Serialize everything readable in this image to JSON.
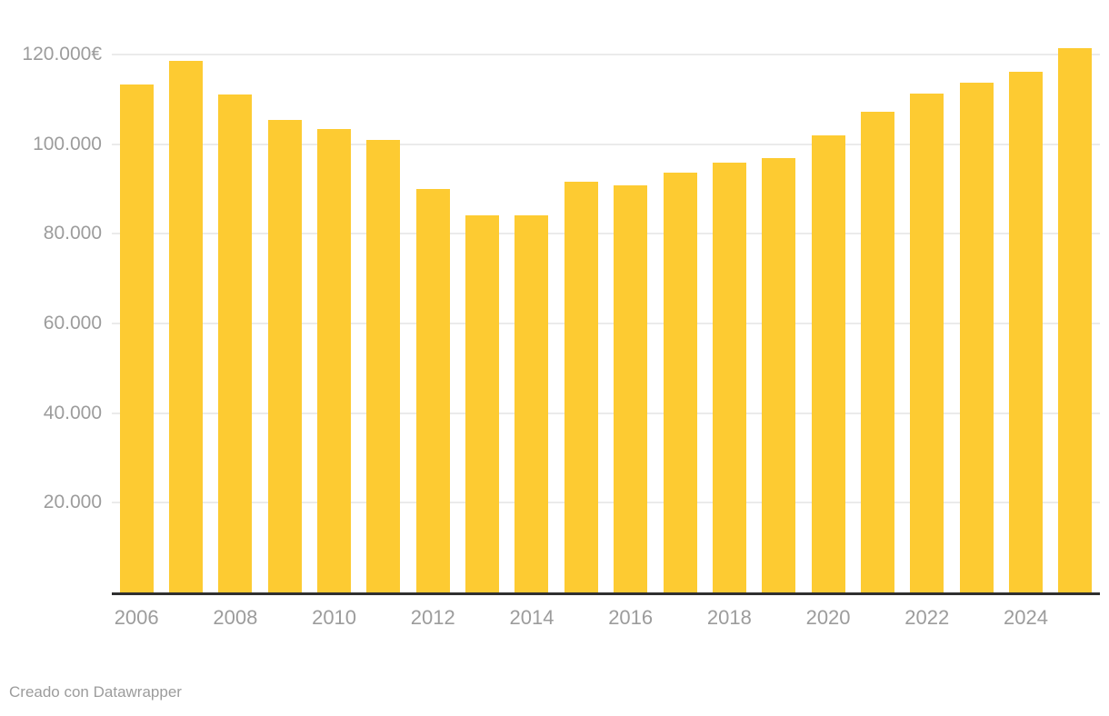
{
  "chart_data": {
    "type": "bar",
    "title": "",
    "categories": [
      "2006",
      "2007",
      "2008",
      "2009",
      "2010",
      "2011",
      "2012",
      "2013",
      "2014",
      "2015",
      "2016",
      "2017",
      "2018",
      "2019",
      "2020",
      "2021",
      "2022",
      "2023",
      "2024",
      "2025"
    ],
    "values": [
      113400,
      118600,
      111100,
      105500,
      103400,
      100900,
      90000,
      84100,
      84100,
      91700,
      90900,
      93600,
      95900,
      96800,
      102000,
      107200,
      111300,
      113700,
      116100,
      121500
    ],
    "unit": "€",
    "xlabel": "",
    "ylabel": "",
    "ylim": [
      0,
      123000
    ],
    "grid": true,
    "legend_position": "none",
    "y_ticks": [
      {
        "value": 120000,
        "label": "120.000€"
      },
      {
        "value": 100000,
        "label": "100.000"
      },
      {
        "value": 80000,
        "label": "80.000"
      },
      {
        "value": 60000,
        "label": "60.000"
      },
      {
        "value": 40000,
        "label": "40.000"
      },
      {
        "value": 20000,
        "label": "20.000"
      }
    ],
    "x_tick_labels": [
      "2006",
      "2008",
      "2010",
      "2012",
      "2014",
      "2016",
      "2018",
      "2020",
      "2022",
      "2024"
    ],
    "colors": {
      "bar": "#FDCB32",
      "grid": "#ebebeb",
      "axis": "#2f2f2f",
      "tick_text": "#9c9c9c",
      "background": "#ffffff"
    }
  },
  "footer": {
    "credit": "Creado con Datawrapper"
  }
}
